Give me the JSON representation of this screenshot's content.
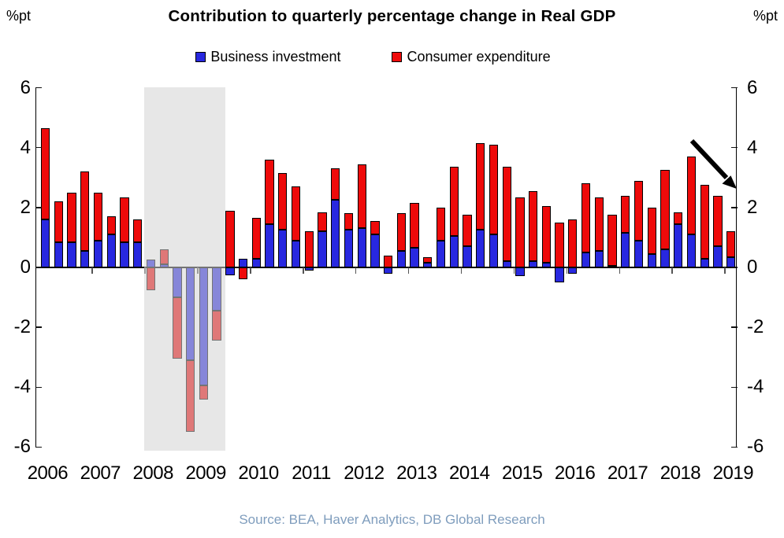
{
  "header": {
    "title": "Contribution to quarterly percentage change in Real GDP",
    "unit_left": "%pt",
    "unit_right": "%pt"
  },
  "legend": [
    {
      "label": "Business investment",
      "color": "#2828e0"
    },
    {
      "label": "Consumer expenditure",
      "color": "#ee0a0a"
    }
  ],
  "source": {
    "text": "Source: BEA, Haver Analytics, DB Global Research",
    "color": "#7f9dbd"
  },
  "colors": {
    "business_investment": "#2828e0",
    "consumer_expenditure": "#ee0a0a",
    "bar_border": "#000000",
    "recession_shading": "#e7e7e7",
    "axis": "#000000",
    "source_text": "#7f9dbd",
    "arrow": "#000000"
  },
  "chart_data": {
    "type": "bar",
    "stacked": true,
    "title": "Contribution to quarterly percentage change in Real GDP",
    "ylabel": "%pt",
    "ylim": [
      -6,
      6
    ],
    "yticks": [
      6,
      4,
      2,
      0,
      -2,
      -4,
      -6
    ],
    "grid": false,
    "legend_position": "top-center",
    "x": [
      "2006Q1",
      "2006Q2",
      "2006Q3",
      "2006Q4",
      "2007Q1",
      "2007Q2",
      "2007Q3",
      "2007Q4",
      "2008Q1",
      "2008Q2",
      "2008Q3",
      "2008Q4",
      "2009Q1",
      "2009Q2",
      "2009Q3",
      "2009Q4",
      "2010Q1",
      "2010Q2",
      "2010Q3",
      "2010Q4",
      "2011Q1",
      "2011Q2",
      "2011Q3",
      "2011Q4",
      "2012Q1",
      "2012Q2",
      "2012Q3",
      "2012Q4",
      "2013Q1",
      "2013Q2",
      "2013Q3",
      "2013Q4",
      "2014Q1",
      "2014Q2",
      "2014Q3",
      "2014Q4",
      "2015Q1",
      "2015Q2",
      "2015Q3",
      "2015Q4",
      "2016Q1",
      "2016Q2",
      "2016Q3",
      "2016Q4",
      "2017Q1",
      "2017Q2",
      "2017Q3",
      "2017Q4",
      "2018Q1",
      "2018Q2",
      "2018Q3",
      "2018Q4",
      "2019Q1"
    ],
    "year_labels": [
      "2006",
      "2007",
      "2008",
      "2009",
      "2010",
      "2011",
      "2012",
      "2013",
      "2014",
      "2015",
      "2016",
      "2017",
      "2018",
      "2019"
    ],
    "series": [
      {
        "name": "Business investment",
        "color": "#2828e0",
        "values": [
          1.6,
          0.85,
          0.85,
          0.55,
          0.9,
          1.1,
          0.85,
          0.85,
          0.25,
          0.1,
          -1.0,
          -3.1,
          -3.95,
          -1.45,
          -0.25,
          0.3,
          0.3,
          1.45,
          1.25,
          0.9,
          -0.1,
          1.2,
          2.25,
          1.25,
          1.3,
          1.1,
          -0.2,
          0.55,
          0.65,
          0.15,
          0.9,
          1.05,
          0.7,
          1.25,
          1.1,
          0.2,
          -0.3,
          0.2,
          0.15,
          -0.5,
          -0.2,
          0.5,
          0.55,
          0.05,
          1.15,
          0.9,
          0.45,
          0.6,
          1.45,
          1.1,
          0.3,
          0.7,
          0.35
        ]
      },
      {
        "name": "Consumer expenditure",
        "color": "#ee0a0a",
        "values": [
          3.05,
          1.35,
          1.65,
          2.65,
          1.6,
          0.6,
          1.5,
          0.75,
          -0.75,
          0.5,
          -2.05,
          -2.4,
          -0.45,
          -1.0,
          1.9,
          -0.4,
          1.35,
          2.15,
          1.9,
          1.8,
          1.2,
          0.65,
          1.05,
          0.55,
          2.15,
          0.45,
          0.4,
          1.25,
          1.5,
          0.2,
          1.1,
          2.3,
          1.05,
          2.9,
          3.0,
          3.15,
          2.35,
          2.35,
          1.9,
          1.5,
          1.6,
          2.3,
          1.8,
          1.7,
          1.25,
          2.0,
          1.55,
          2.65,
          0.4,
          2.6,
          2.45,
          1.7,
          0.85
        ]
      }
    ],
    "recession_band": {
      "from": "2008Q1",
      "to": "2009Q2"
    },
    "annotation": {
      "type": "arrow",
      "meaning": "downward trend pointing at latest bar",
      "near": "2019Q1"
    }
  }
}
